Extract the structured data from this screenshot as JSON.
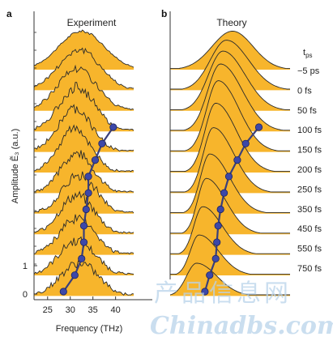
{
  "chart_data": {
    "type": "area",
    "panels": [
      {
        "letter": "a",
        "title": "Experiment",
        "xlabel": "Frequency (THz)",
        "ylabel": "Amplitude Ẽ₃ (a.u.)",
        "xticks": [
          25,
          30,
          35,
          40
        ],
        "yticks": [
          0,
          1
        ],
        "xlim": [
          22,
          44
        ],
        "spectra": [
          {
            "center": 32.5,
            "sigma": 5.0,
            "amplitude": 1.0,
            "noise": 0.05
          },
          {
            "center": 32.0,
            "sigma": 4.6,
            "amplitude": 1.05,
            "noise": 0.12
          },
          {
            "center": 31.5,
            "sigma": 4.3,
            "amplitude": 1.1,
            "noise": 0.15
          },
          {
            "center": 31.5,
            "sigma": 4.0,
            "amplitude": 1.15,
            "noise": 0.18
          },
          {
            "center": 31.0,
            "sigma": 3.8,
            "amplitude": 1.1,
            "noise": 0.18
          },
          {
            "center": 31.0,
            "sigma": 3.6,
            "amplitude": 1.15,
            "noise": 0.18
          },
          {
            "center": 31.5,
            "sigma": 3.6,
            "amplitude": 1.05,
            "noise": 0.18
          },
          {
            "center": 32.0,
            "sigma": 3.8,
            "amplitude": 1.0,
            "noise": 0.2
          },
          {
            "center": 31.5,
            "sigma": 3.8,
            "amplitude": 1.0,
            "noise": 0.2
          },
          {
            "center": 31.5,
            "sigma": 3.8,
            "amplitude": 0.95,
            "noise": 0.2
          },
          {
            "center": 31.5,
            "sigma": 4.0,
            "amplitude": 0.9,
            "noise": 0.2
          },
          {
            "center": 32.0,
            "sigma": 4.2,
            "amplitude": 0.85,
            "noise": 0.2
          }
        ],
        "trajectory_x": [
          28.5,
          31.0,
          32.5,
          33.0,
          33.0,
          33.5,
          34.0,
          34.0,
          35.5,
          37.0,
          39.5
        ]
      },
      {
        "letter": "b",
        "title": "Theory",
        "spectra": [
          {
            "center": 0.52,
            "sigma": 0.17,
            "amplitude": 1.0,
            "skew": 0.0
          },
          {
            "center": 0.47,
            "sigma": 0.15,
            "amplitude": 1.3,
            "skew": 0.25
          },
          {
            "center": 0.44,
            "sigma": 0.14,
            "amplitude": 1.55,
            "skew": 0.35
          },
          {
            "center": 0.42,
            "sigma": 0.13,
            "amplitude": 1.75,
            "skew": 0.45
          },
          {
            "center": 0.4,
            "sigma": 0.12,
            "amplitude": 1.85,
            "skew": 0.5
          },
          {
            "center": 0.38,
            "sigma": 0.115,
            "amplitude": 1.8,
            "skew": 0.55
          },
          {
            "center": 0.36,
            "sigma": 0.11,
            "amplitude": 1.7,
            "skew": 0.6
          },
          {
            "center": 0.33,
            "sigma": 0.105,
            "amplitude": 1.55,
            "skew": 0.65
          },
          {
            "center": 0.3,
            "sigma": 0.1,
            "amplitude": 1.45,
            "skew": 0.7
          },
          {
            "center": 0.27,
            "sigma": 0.1,
            "amplitude": 1.25,
            "skew": 0.7
          },
          {
            "center": 0.24,
            "sigma": 0.1,
            "amplitude": 1.05,
            "skew": 0.7
          },
          {
            "center": 0.22,
            "sigma": 0.11,
            "amplitude": 0.85,
            "skew": 0.6
          }
        ],
        "trajectory_x": [
          0.29,
          0.33,
          0.38,
          0.39,
          0.4,
          0.42,
          0.45,
          0.49,
          0.56,
          0.63,
          0.74
        ]
      }
    ],
    "legend": {
      "header": "t_ps",
      "labels": [
        "−5 ps",
        "0 fs",
        "50 fs",
        "100 fs",
        "150 fs",
        "200 fs",
        "250 fs",
        "350 fs",
        "450 fs",
        "550 fs",
        "750 fs"
      ]
    },
    "colors": {
      "fill": "#f7b52c",
      "line": "#2a2a2a",
      "trajectory": "#3a3f7a",
      "marker": "#3d48a8"
    }
  },
  "watermark": {
    "cn": "产品信息网",
    "en": "Chinadbs.com"
  }
}
